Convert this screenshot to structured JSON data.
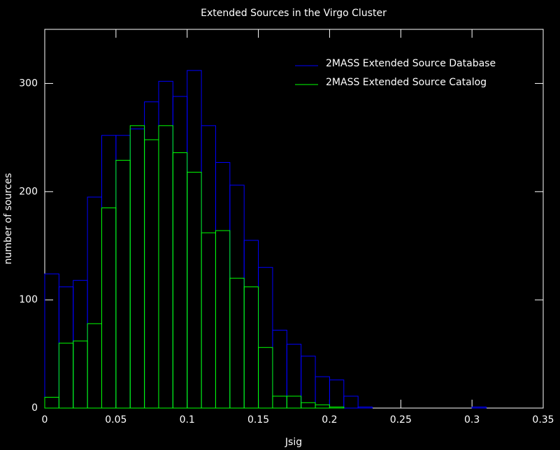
{
  "chart_data": {
    "type": "histogram",
    "title": "Extended Sources in the Virgo Cluster",
    "x_label": "Jsig",
    "y_label": "number of sources",
    "bins": [
      0,
      0.01,
      0.02,
      0.03,
      0.04,
      0.05,
      0.06,
      0.07,
      0.08,
      0.09,
      0.1,
      0.11,
      0.12,
      0.13,
      0.14,
      0.15,
      0.16,
      0.17,
      0.18,
      0.19,
      0.2,
      0.21,
      0.22,
      0.23,
      0.24,
      0.25,
      0.26,
      0.27,
      0.28,
      0.29,
      0.3,
      0.31,
      0.32,
      0.33,
      0.34,
      0.35
    ],
    "series": [
      {
        "name": "2MASS Extended Source Database",
        "color": "#0000ff",
        "values": [
          124,
          112,
          118,
          195,
          252,
          252,
          258,
          283,
          302,
          288,
          312,
          261,
          227,
          206,
          155,
          130,
          72,
          59,
          48,
          29,
          26,
          11,
          1,
          0,
          0,
          0,
          0,
          0,
          0,
          0,
          1,
          0,
          0,
          0,
          0
        ]
      },
      {
        "name": "2MASS Extended Source Catalog",
        "color": "#00ff00",
        "values": [
          10,
          60,
          62,
          78,
          185,
          229,
          261,
          248,
          261,
          236,
          218,
          162,
          164,
          120,
          112,
          56,
          11,
          11,
          5,
          3,
          1,
          0,
          0,
          0,
          0,
          0,
          0,
          0,
          0,
          0,
          0,
          0,
          0,
          0,
          0
        ]
      }
    ],
    "xlim": [
      0,
      0.35
    ],
    "xticks": [
      0,
      0.05,
      0.1,
      0.15,
      0.2,
      0.25,
      0.3,
      0.35
    ],
    "ylim": [
      0,
      350
    ],
    "yticks": [
      0,
      100,
      200,
      300
    ],
    "legend": "upper right"
  }
}
